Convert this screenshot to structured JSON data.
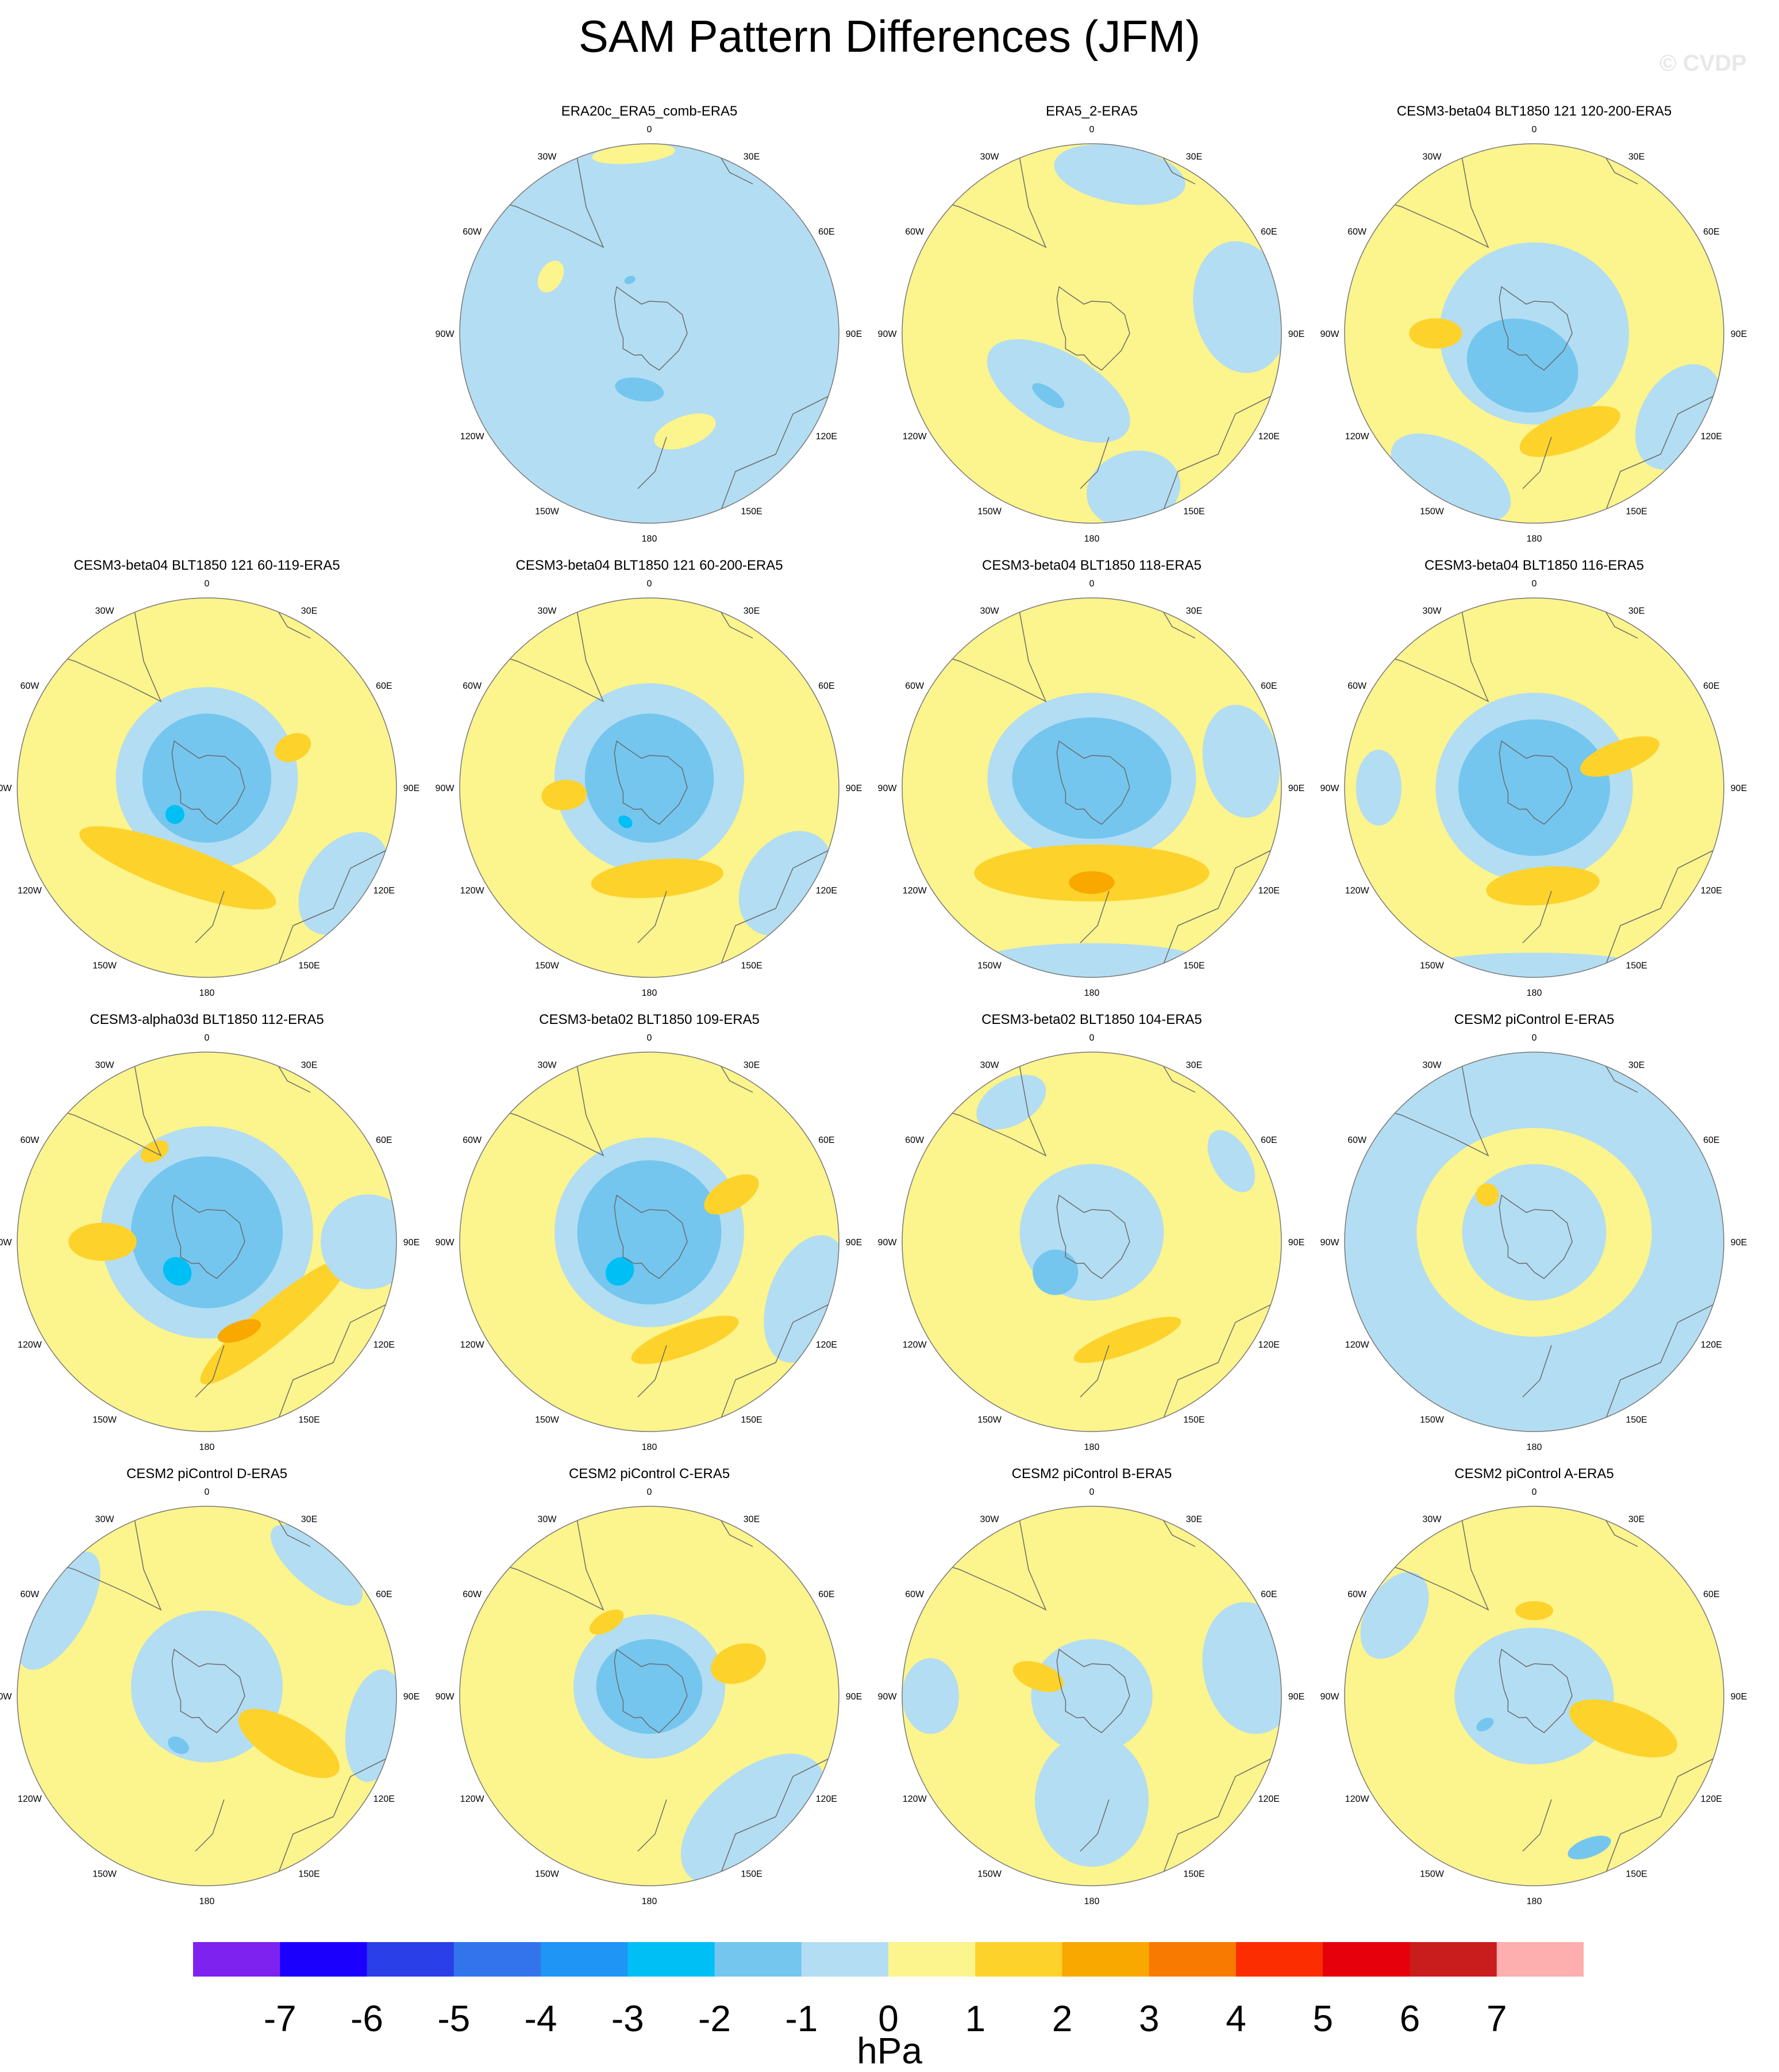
{
  "title": "SAM Pattern Differences (JFM)",
  "watermark": "© CVDP",
  "units": "hPa",
  "colors": {
    "neg1": "#b3ddf2",
    "neg2": "#74c6ef",
    "neg3": "#00bff5",
    "pos1": "#fcf48c",
    "pos2": "#fdd22b",
    "pos3": "#f9a800",
    "coast": "#6b6b6b",
    "rim": "#777777"
  },
  "lon_labels": [
    "0",
    "30E",
    "60E",
    "90E",
    "120E",
    "150E",
    "180",
    "150W",
    "120W",
    "90W",
    "60W",
    "30W"
  ],
  "colorbar": {
    "levels": [
      "-7",
      "-6",
      "-5",
      "-4",
      "-3",
      "-2",
      "-1",
      "0",
      "1",
      "2",
      "3",
      "4",
      "5",
      "6",
      "7"
    ],
    "colors": [
      "#7d22ef",
      "#1c00fd",
      "#2a3fe8",
      "#3374ec",
      "#1f95f5",
      "#00bff5",
      "#74c6ef",
      "#b3ddf2",
      "#fcf48c",
      "#fdd22b",
      "#f9a800",
      "#f97a00",
      "#fc2d00",
      "#e5000b",
      "#c91c1c",
      "#fdaeae"
    ]
  },
  "panels": [
    {
      "id": "p1",
      "title": "ERA20c_ERA5_comb-ERA5",
      "background": "neg1",
      "blobs": [
        {
          "c": "pos1",
          "lon": 300,
          "r": 0.6,
          "w": 0.09,
          "h": 0.06
        },
        {
          "c": "pos1",
          "lon": 160,
          "r": 0.55,
          "w": 0.17,
          "h": 0.08
        },
        {
          "c": "neg2",
          "lon": 190,
          "r": 0.3,
          "w": 0.13,
          "h": 0.06
        },
        {
          "c": "pos1",
          "lon": 355,
          "r": 0.95,
          "w": 0.22,
          "h": 0.05
        },
        {
          "c": "neg2",
          "lon": 340,
          "r": 0.3,
          "w": 0.03,
          "h": 0.02
        }
      ]
    },
    {
      "id": "p2",
      "title": "ERA5_2-ERA5",
      "background": "pos1",
      "blobs": [
        {
          "c": "neg1",
          "lon": 210,
          "r": 0.35,
          "w": 0.42,
          "h": 0.2
        },
        {
          "c": "neg1",
          "lon": 80,
          "r": 0.8,
          "w": 0.35,
          "h": 0.25
        },
        {
          "c": "neg1",
          "lon": 10,
          "r": 0.85,
          "w": 0.35,
          "h": 0.15
        },
        {
          "c": "neg1",
          "lon": 165,
          "r": 0.85,
          "w": 0.25,
          "h": 0.2
        },
        {
          "c": "neg2",
          "lon": 215,
          "r": 0.4,
          "w": 0.1,
          "h": 0.04
        }
      ]
    },
    {
      "id": "p3",
      "title": "CESM3-beta04 BLT1850 121 120-200-ERA5",
      "background": "pos1",
      "blobs": [
        {
          "c": "neg1",
          "lon": 0,
          "r": 0.0,
          "w": 0.5,
          "h": 0.48
        },
        {
          "c": "neg2",
          "lon": 200,
          "r": 0.18,
          "w": 0.3,
          "h": 0.24
        },
        {
          "c": "pos2",
          "lon": 160,
          "r": 0.55,
          "w": 0.28,
          "h": 0.1
        },
        {
          "c": "pos2",
          "lon": 270,
          "r": 0.52,
          "w": 0.08,
          "h": 0.14
        },
        {
          "c": "neg1",
          "lon": 120,
          "r": 0.88,
          "w": 0.3,
          "h": 0.2
        },
        {
          "c": "neg1",
          "lon": 210,
          "r": 0.88,
          "w": 0.35,
          "h": 0.18
        }
      ]
    },
    {
      "id": "p4",
      "title": "CESM3-beta04 BLT1850 121 60-119-ERA5",
      "background": "pos1",
      "blobs": [
        {
          "c": "neg1",
          "lon": 0,
          "r": 0.05,
          "w": 0.48,
          "h": 0.48
        },
        {
          "c": "neg2",
          "lon": 0,
          "r": 0.05,
          "w": 0.34,
          "h": 0.34
        },
        {
          "c": "neg3",
          "lon": 230,
          "r": 0.22,
          "w": 0.05,
          "h": 0.05
        },
        {
          "c": "pos2",
          "lon": 200,
          "r": 0.45,
          "w": 0.55,
          "h": 0.12
        },
        {
          "c": "pos2",
          "lon": 65,
          "r": 0.5,
          "w": 0.07,
          "h": 0.1
        },
        {
          "c": "neg1",
          "lon": 125,
          "r": 0.88,
          "w": 0.3,
          "h": 0.2
        }
      ]
    },
    {
      "id": "p5",
      "title": "CESM3-beta04 BLT1850 121 60-200-ERA5",
      "background": "pos1",
      "blobs": [
        {
          "c": "neg1",
          "lon": 0,
          "r": 0.05,
          "w": 0.5,
          "h": 0.5
        },
        {
          "c": "neg2",
          "lon": 0,
          "r": 0.05,
          "w": 0.34,
          "h": 0.34
        },
        {
          "c": "neg3",
          "lon": 215,
          "r": 0.22,
          "w": 0.04,
          "h": 0.03
        },
        {
          "c": "pos2",
          "lon": 175,
          "r": 0.48,
          "w": 0.35,
          "h": 0.1
        },
        {
          "c": "pos2",
          "lon": 265,
          "r": 0.45,
          "w": 0.08,
          "h": 0.12
        },
        {
          "c": "neg1",
          "lon": 125,
          "r": 0.88,
          "w": 0.3,
          "h": 0.22
        }
      ]
    },
    {
      "id": "p6",
      "title": "CESM3-beta04 BLT1850 118-ERA5",
      "background": "pos1",
      "blobs": [
        {
          "c": "neg1",
          "lon": 0,
          "r": 0.05,
          "w": 0.55,
          "h": 0.45
        },
        {
          "c": "neg2",
          "lon": 0,
          "r": 0.05,
          "w": 0.42,
          "h": 0.32
        },
        {
          "c": "pos2",
          "lon": 180,
          "r": 0.45,
          "w": 0.62,
          "h": 0.15
        },
        {
          "c": "pos3",
          "lon": 180,
          "r": 0.5,
          "w": 0.12,
          "h": 0.06
        },
        {
          "c": "neg1",
          "lon": 180,
          "r": 0.92,
          "w": 0.6,
          "h": 0.1
        },
        {
          "c": "neg1",
          "lon": 80,
          "r": 0.8,
          "w": 0.3,
          "h": 0.2
        }
      ]
    },
    {
      "id": "p7",
      "title": "CESM3-beta04 BLT1850 116-ERA5",
      "background": "pos1",
      "blobs": [
        {
          "c": "neg1",
          "lon": 0,
          "r": 0.0,
          "w": 0.52,
          "h": 0.5
        },
        {
          "c": "neg2",
          "lon": 0,
          "r": 0.0,
          "w": 0.4,
          "h": 0.36
        },
        {
          "c": "pos2",
          "lon": 175,
          "r": 0.52,
          "w": 0.3,
          "h": 0.1
        },
        {
          "c": "pos2",
          "lon": 70,
          "r": 0.48,
          "w": 0.08,
          "h": 0.22
        },
        {
          "c": "neg1",
          "lon": 180,
          "r": 0.95,
          "w": 0.6,
          "h": 0.08
        },
        {
          "c": "neg1",
          "lon": 270,
          "r": 0.82,
          "w": 0.2,
          "h": 0.12
        }
      ]
    },
    {
      "id": "p8",
      "title": "CESM3-alpha03d BLT1850 112-ERA5",
      "background": "pos1",
      "blobs": [
        {
          "c": "neg1",
          "lon": 0,
          "r": 0.05,
          "w": 0.56,
          "h": 0.56
        },
        {
          "c": "neg2",
          "lon": 0,
          "r": 0.05,
          "w": 0.4,
          "h": 0.4
        },
        {
          "c": "neg3",
          "lon": 225,
          "r": 0.22,
          "w": 0.08,
          "h": 0.07
        },
        {
          "c": "pos2",
          "lon": 140,
          "r": 0.55,
          "w": 0.5,
          "h": 0.1
        },
        {
          "c": "pos3",
          "lon": 160,
          "r": 0.5,
          "w": 0.12,
          "h": 0.05
        },
        {
          "c": "pos2",
          "lon": 270,
          "r": 0.55,
          "w": 0.1,
          "h": 0.18
        },
        {
          "c": "pos2",
          "lon": 330,
          "r": 0.55,
          "w": 0.08,
          "h": 0.05
        },
        {
          "c": "neg1",
          "lon": 90,
          "r": 0.85,
          "w": 0.25,
          "h": 0.25
        }
      ]
    },
    {
      "id": "p9",
      "title": "CESM3-beta02 BLT1850 109-ERA5",
      "background": "pos1",
      "blobs": [
        {
          "c": "neg1",
          "lon": 0,
          "r": 0.05,
          "w": 0.5,
          "h": 0.5
        },
        {
          "c": "neg2",
          "lon": 0,
          "r": 0.05,
          "w": 0.38,
          "h": 0.38
        },
        {
          "c": "neg3",
          "lon": 225,
          "r": 0.22,
          "w": 0.07,
          "h": 0.08
        },
        {
          "c": "pos2",
          "lon": 160,
          "r": 0.55,
          "w": 0.3,
          "h": 0.08
        },
        {
          "c": "pos2",
          "lon": 60,
          "r": 0.5,
          "w": 0.08,
          "h": 0.16
        },
        {
          "c": "neg1",
          "lon": 110,
          "r": 0.88,
          "w": 0.35,
          "h": 0.2
        }
      ]
    },
    {
      "id": "p10",
      "title": "CESM3-beta02 BLT1850 104-ERA5",
      "background": "pos1",
      "blobs": [
        {
          "c": "neg1",
          "lon": 0,
          "r": 0.05,
          "w": 0.38,
          "h": 0.36
        },
        {
          "c": "neg2",
          "lon": 230,
          "r": 0.25,
          "w": 0.12,
          "h": 0.12
        },
        {
          "c": "pos2",
          "lon": 160,
          "r": 0.55,
          "w": 0.3,
          "h": 0.07
        },
        {
          "c": "neg1",
          "lon": 330,
          "r": 0.85,
          "w": 0.2,
          "h": 0.12
        },
        {
          "c": "neg1",
          "lon": 60,
          "r": 0.85,
          "w": 0.18,
          "h": 0.1
        }
      ]
    },
    {
      "id": "p11",
      "title": "CESM2 piControl E-ERA5",
      "background": "neg1",
      "blobs": [
        {
          "c": "pos1",
          "lon": 0,
          "r": 0.05,
          "w": 0.62,
          "h": 0.55
        },
        {
          "c": "neg1",
          "lon": 0,
          "r": 0.05,
          "w": 0.38,
          "h": 0.36
        },
        {
          "c": "pos2",
          "lon": 315,
          "r": 0.35,
          "w": 0.06,
          "h": 0.06
        },
        {
          "c": "neg1",
          "lon": 150,
          "r": 0.85,
          "w": 0.3,
          "h": 0.2
        }
      ]
    },
    {
      "id": "p12",
      "title": "CESM2 piControl D-ERA5",
      "background": "pos1",
      "blobs": [
        {
          "c": "neg1",
          "lon": 0,
          "r": 0.05,
          "w": 0.4,
          "h": 0.4
        },
        {
          "c": "neg2",
          "lon": 210,
          "r": 0.3,
          "w": 0.06,
          "h": 0.04
        },
        {
          "c": "pos2",
          "lon": 120,
          "r": 0.5,
          "w": 0.12,
          "h": 0.3
        },
        {
          "c": "neg1",
          "lon": 300,
          "r": 0.9,
          "w": 0.35,
          "h": 0.15
        },
        {
          "c": "neg1",
          "lon": 40,
          "r": 0.9,
          "w": 0.3,
          "h": 0.12
        },
        {
          "c": "neg1",
          "lon": 100,
          "r": 0.9,
          "w": 0.3,
          "h": 0.15
        }
      ]
    },
    {
      "id": "p13",
      "title": "CESM2 piControl C-ERA5",
      "background": "pos1",
      "blobs": [
        {
          "c": "neg1",
          "lon": 0,
          "r": 0.05,
          "w": 0.4,
          "h": 0.38
        },
        {
          "c": "neg2",
          "lon": 0,
          "r": 0.05,
          "w": 0.28,
          "h": 0.25
        },
        {
          "c": "pos2",
          "lon": 330,
          "r": 0.45,
          "w": 0.1,
          "h": 0.05
        },
        {
          "c": "pos2",
          "lon": 70,
          "r": 0.5,
          "w": 0.1,
          "h": 0.15
        },
        {
          "c": "neg1",
          "lon": 140,
          "r": 0.85,
          "w": 0.45,
          "h": 0.25
        }
      ]
    },
    {
      "id": "p14",
      "title": "CESM2 piControl B-ERA5",
      "background": "pos1",
      "blobs": [
        {
          "c": "neg1",
          "lon": 0,
          "r": 0.0,
          "w": 0.32,
          "h": 0.3
        },
        {
          "c": "neg1",
          "lon": 180,
          "r": 0.55,
          "w": 0.3,
          "h": 0.35
        },
        {
          "c": "pos2",
          "lon": 290,
          "r": 0.3,
          "w": 0.07,
          "h": 0.14
        },
        {
          "c": "neg1",
          "lon": 80,
          "r": 0.85,
          "w": 0.35,
          "h": 0.25
        },
        {
          "c": "neg1",
          "lon": 270,
          "r": 0.85,
          "w": 0.2,
          "h": 0.15
        }
      ]
    },
    {
      "id": "p15",
      "title": "CESM2 piControl A-ERA5",
      "background": "pos1",
      "blobs": [
        {
          "c": "neg1",
          "lon": 0,
          "r": 0.0,
          "w": 0.42,
          "h": 0.36
        },
        {
          "c": "pos2",
          "lon": 110,
          "r": 0.5,
          "w": 0.12,
          "h": 0.3
        },
        {
          "c": "pos2",
          "lon": 0,
          "r": 0.45,
          "w": 0.1,
          "h": 0.05
        },
        {
          "c": "neg2",
          "lon": 240,
          "r": 0.3,
          "w": 0.03,
          "h": 0.05
        },
        {
          "c": "neg2",
          "lon": 160,
          "r": 0.85,
          "w": 0.12,
          "h": 0.05
        },
        {
          "c": "neg1",
          "lon": 300,
          "r": 0.85,
          "w": 0.25,
          "h": 0.15
        }
      ]
    }
  ]
}
